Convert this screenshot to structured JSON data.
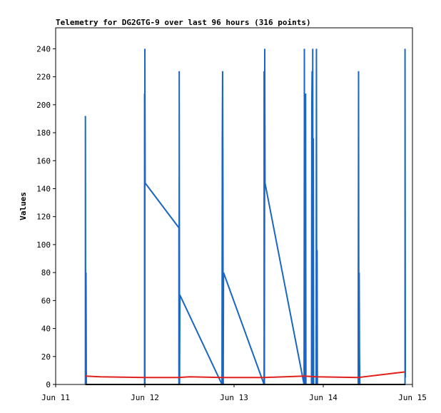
{
  "chart_data": {
    "type": "line",
    "title": "Telemetry for DG2GTG-9 over last 96 hours (316 points)",
    "ylabel": "Values",
    "xlabel": "",
    "ylim": [
      0,
      255
    ],
    "xlim": [
      "Jun 11 00:00",
      "Jun 15 00:00"
    ],
    "grid": false,
    "legend": "none",
    "xticks": [
      "Jun 11",
      "Jun 12",
      "Jun 13",
      "Jun 14",
      "Jun 15"
    ],
    "yticks": [
      0,
      20,
      40,
      60,
      80,
      100,
      120,
      140,
      160,
      180,
      200,
      220,
      240
    ],
    "series": [
      {
        "color": "#1a66c2",
        "points": [
          [
            "Jun 11 08:00",
            0
          ],
          [
            "Jun 11 08:00",
            192
          ],
          [
            "Jun 11 08:05",
            0
          ],
          [
            "Jun 11 08:10",
            80
          ],
          [
            "Jun 11 08:15",
            0
          ],
          [
            "Jun 11 23:55",
            0
          ],
          [
            "Jun 11 23:55",
            208
          ],
          [
            "Jun 12 00:00",
            0
          ],
          [
            "Jun 12 00:00",
            240
          ],
          [
            "Jun 12 00:05",
            144
          ],
          [
            "Jun 12 09:10",
            112
          ],
          [
            "Jun 12 09:10",
            0
          ],
          [
            "Jun 12 09:15",
            160
          ],
          [
            "Jun 12 09:15",
            224
          ],
          [
            "Jun 12 09:20",
            0
          ],
          [
            "Jun 12 09:25",
            64
          ],
          [
            "Jun 12 20:45",
            0
          ],
          [
            "Jun 12 20:50",
            176
          ],
          [
            "Jun 12 20:55",
            224
          ],
          [
            "Jun 12 21:00",
            144
          ],
          [
            "Jun 12 21:05",
            0
          ],
          [
            "Jun 12 21:10",
            80
          ],
          [
            "Jun 13 08:05",
            0
          ],
          [
            "Jun 13 08:05",
            224
          ],
          [
            "Jun 13 08:10",
            0
          ],
          [
            "Jun 13 08:15",
            240
          ],
          [
            "Jun 13 08:20",
            144
          ],
          [
            "Jun 13 18:50",
            0
          ],
          [
            "Jun 13 18:55",
            184
          ],
          [
            "Jun 13 18:55",
            240
          ],
          [
            "Jun 13 19:00",
            0
          ],
          [
            "Jun 13 19:05",
            88
          ],
          [
            "Jun 13 19:10",
            0
          ],
          [
            "Jun 13 19:15",
            208
          ],
          [
            "Jun 13 19:20",
            0
          ],
          [
            "Jun 13 20:50",
            0
          ],
          [
            "Jun 13 20:55",
            200
          ],
          [
            "Jun 13 21:00",
            224
          ],
          [
            "Jun 13 21:05",
            0
          ],
          [
            "Jun 13 21:10",
            240
          ],
          [
            "Jun 13 21:15",
            0
          ],
          [
            "Jun 13 21:20",
            176
          ],
          [
            "Jun 13 21:25",
            0
          ],
          [
            "Jun 13 22:05",
            0
          ],
          [
            "Jun 13 22:10",
            240
          ],
          [
            "Jun 13 22:15",
            0
          ],
          [
            "Jun 13 22:20",
            96
          ],
          [
            "Jun 13 22:25",
            0
          ],
          [
            "Jun 14 09:25",
            0
          ],
          [
            "Jun 14 09:25",
            48
          ],
          [
            "Jun 14 09:30",
            224
          ],
          [
            "Jun 14 09:35",
            0
          ],
          [
            "Jun 14 09:40",
            80
          ],
          [
            "Jun 14 09:45",
            24
          ],
          [
            "Jun 14 09:50",
            0
          ],
          [
            "Jun 14 22:00",
            0
          ],
          [
            "Jun 14 22:00",
            240
          ],
          [
            "Jun 14 22:05",
            5
          ]
        ]
      },
      {
        "color": "#e0201c",
        "points": [
          [
            "Jun 11 08:00",
            6
          ],
          [
            "Jun 11 12:00",
            5.5
          ],
          [
            "Jun 11 23:55",
            5
          ],
          [
            "Jun 12 09:15",
            5
          ],
          [
            "Jun 12 12:00",
            5.5
          ],
          [
            "Jun 12 20:50",
            5
          ],
          [
            "Jun 13 08:10",
            5
          ],
          [
            "Jun 13 18:55",
            6
          ],
          [
            "Jun 13 22:10",
            5.5
          ],
          [
            "Jun 14 09:30",
            5
          ],
          [
            "Jun 14 22:00",
            9
          ]
        ]
      },
      {
        "color": "#000000",
        "points": [
          [
            "Jun 11 08:00",
            0
          ],
          [
            "Jun 14 22:05",
            0
          ]
        ]
      }
    ]
  }
}
